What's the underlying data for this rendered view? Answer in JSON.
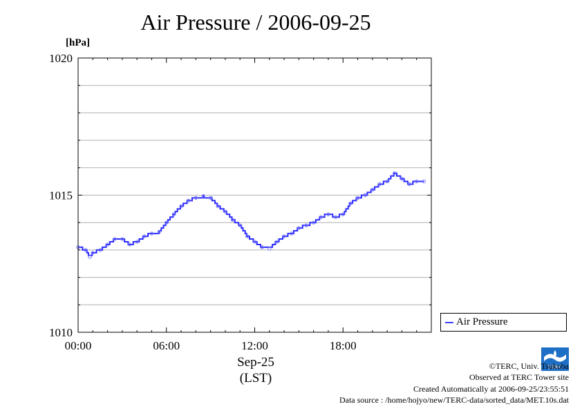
{
  "title": "Air Pressure / 2006-09-25",
  "unit_label": "[hPa]",
  "xlabel_line1": "Sep-25",
  "xlabel_line2": "(LST)",
  "legend_label": "Air Pressure",
  "footer": {
    "copyright": "©TERC, Univ. Tsukuba",
    "observed": "Observed at TERC Tower site",
    "created": "Created Automatically at 2006-09-25/23:55:51",
    "source": "Data source : /home/hojyo/new/TERC-data/sorted_data/MET.10s.dat"
  },
  "logo_text": "TERC",
  "colors": {
    "series": "#2a2aff",
    "grid": "#b0b0b0"
  },
  "chart_data": {
    "type": "line",
    "title": "Air Pressure / 2006-09-25",
    "ylabel": "[hPa]",
    "xlabel": "Sep-25 (LST)",
    "ylim": [
      1010,
      1020
    ],
    "xlim_hours": [
      0,
      24
    ],
    "y_ticks": [
      1010,
      1015,
      1020
    ],
    "x_ticks": [
      "00:00",
      "06:00",
      "12:00",
      "18:00"
    ],
    "grid": true,
    "legend": "right",
    "series": [
      {
        "name": "Air Pressure",
        "x_hours": [
          0.0,
          0.5,
          0.8,
          1.0,
          1.5,
          2.0,
          2.5,
          3.0,
          3.5,
          4.0,
          4.5,
          5.0,
          5.5,
          6.0,
          6.5,
          7.0,
          7.5,
          8.0,
          8.5,
          9.0,
          9.5,
          10.0,
          10.5,
          11.0,
          11.5,
          12.0,
          12.5,
          13.0,
          13.5,
          14.0,
          14.5,
          15.0,
          15.5,
          16.0,
          16.5,
          17.0,
          17.5,
          18.0,
          18.5,
          19.0,
          19.5,
          20.0,
          20.5,
          21.0,
          21.5,
          22.0,
          22.5,
          23.0,
          23.5
        ],
        "values": [
          1013.1,
          1013.0,
          1012.75,
          1012.9,
          1013.0,
          1013.2,
          1013.4,
          1013.4,
          1013.2,
          1013.3,
          1013.5,
          1013.6,
          1013.65,
          1014.0,
          1014.3,
          1014.6,
          1014.8,
          1014.9,
          1014.95,
          1014.9,
          1014.6,
          1014.4,
          1014.1,
          1013.9,
          1013.5,
          1013.3,
          1013.1,
          1013.05,
          1013.3,
          1013.5,
          1013.6,
          1013.8,
          1013.9,
          1014.0,
          1014.2,
          1014.3,
          1014.2,
          1014.3,
          1014.7,
          1014.9,
          1015.0,
          1015.2,
          1015.4,
          1015.5,
          1015.8,
          1015.6,
          1015.4,
          1015.5,
          1015.5
        ]
      }
    ]
  }
}
